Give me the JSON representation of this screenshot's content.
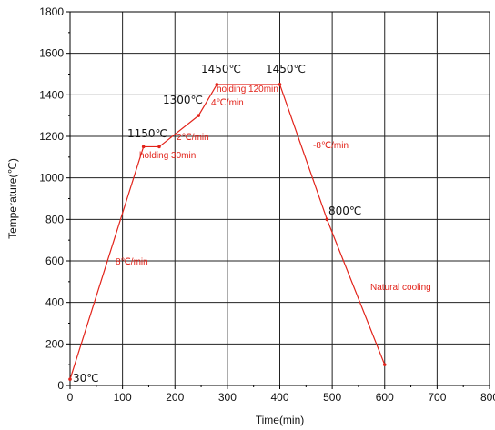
{
  "colors": {
    "series": "#e2231a",
    "axis": "#000000",
    "grid": "#222222",
    "black_text": "#111111"
  },
  "chart_data": {
    "type": "line",
    "title": "",
    "xlabel": "Time(min)",
    "ylabel": "Temperature(℃)",
    "xlim": [
      0,
      800
    ],
    "ylim": [
      0,
      1800
    ],
    "xticks": [
      0,
      100,
      200,
      300,
      400,
      500,
      600,
      700,
      800
    ],
    "yticks": [
      0,
      200,
      400,
      600,
      800,
      1000,
      1200,
      1400,
      1600,
      1800
    ],
    "grid": true,
    "legend": "none",
    "series": [
      {
        "x": [
          0,
          140,
          170,
          245,
          280,
          400,
          490,
          600
        ],
        "y": [
          30,
          1150,
          1150,
          1300,
          1450,
          1450,
          800,
          100
        ]
      }
    ],
    "annotations": {
      "black": [
        "30℃",
        "1150℃",
        "1300℃",
        "1450℃",
        "1450℃",
        "800℃"
      ],
      "red": [
        "8℃/min",
        "holding 30min",
        "2℃/min",
        "4℃/min",
        "holding 120min",
        "-8℃/min",
        "Natural cooling"
      ]
    }
  }
}
